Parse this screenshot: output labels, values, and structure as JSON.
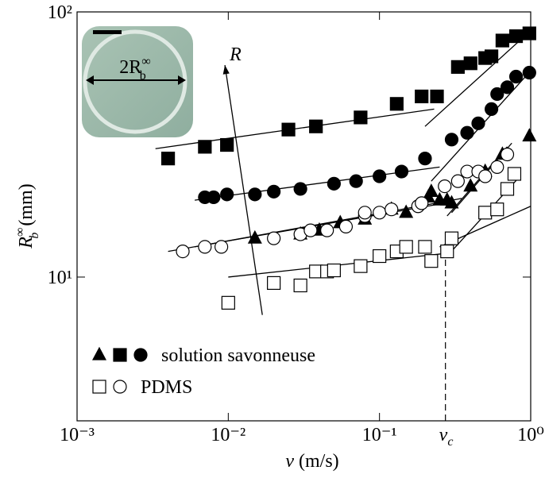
{
  "chart_data": {
    "type": "scatter",
    "log_x": true,
    "log_y": true,
    "xlim": [
      0.001,
      1
    ],
    "ylim": [
      2.87,
      100
    ],
    "xticks": [
      {
        "value": 0.001,
        "label": "10⁻³"
      },
      {
        "value": 0.01,
        "label": "10⁻²"
      },
      {
        "value": 0.1,
        "label": "10⁻¹"
      },
      {
        "value": 1,
        "label": "10⁰"
      }
    ],
    "yticks": [
      {
        "value": 10,
        "label": "10¹"
      },
      {
        "value": 100,
        "label": "10²"
      }
    ],
    "x_label": {
      "text": "v",
      "unit": "(m/s)"
    },
    "y_label": {
      "text": "R",
      "sub": "b",
      "sup": "∞",
      "unit": "(mm)"
    },
    "inset_label": {
      "text": "2R",
      "sub": "b",
      "sup": "∞"
    },
    "series": [
      {
        "name": "solution savonneuse",
        "marker": "triangle",
        "filled": true,
        "color": "#000000",
        "x": [
          0.015,
          0.03,
          0.04,
          0.055,
          0.08,
          0.12,
          0.15,
          0.21,
          0.22,
          0.25,
          0.28,
          0.3,
          0.4,
          0.5,
          0.65,
          0.98
        ],
        "y": [
          14,
          14.5,
          15,
          16,
          16.5,
          18,
          17.5,
          20,
          21,
          19.5,
          19.5,
          19,
          22,
          25,
          29,
          34
        ]
      },
      {
        "name": "solution savonneuse",
        "marker": "square",
        "filled": true,
        "color": "#000000",
        "x": [
          0.004,
          0.007,
          0.0098,
          0.025,
          0.038,
          0.075,
          0.13,
          0.19,
          0.24,
          0.33,
          0.4,
          0.5,
          0.55,
          0.65,
          0.8,
          0.98
        ],
        "y": [
          28,
          31,
          31.5,
          36,
          37,
          40,
          45,
          48,
          48,
          62,
          64,
          67,
          68,
          78,
          81,
          83
        ]
      },
      {
        "name": "solution savonneuse",
        "marker": "circle",
        "filled": true,
        "color": "#000000",
        "x": [
          0.007,
          0.008,
          0.0098,
          0.015,
          0.02,
          0.03,
          0.05,
          0.07,
          0.1,
          0.14,
          0.2,
          0.3,
          0.38,
          0.45,
          0.55,
          0.6,
          0.7,
          0.8,
          0.98
        ],
        "y": [
          20,
          20,
          20.5,
          20.5,
          21,
          21.5,
          22.5,
          23,
          24,
          25,
          28,
          33,
          35,
          38,
          43,
          49,
          52,
          57,
          59
        ]
      },
      {
        "name": "PDMS",
        "marker": "square",
        "filled": false,
        "color": "#000000",
        "x": [
          0.01,
          0.02,
          0.03,
          0.038,
          0.045,
          0.05,
          0.075,
          0.1,
          0.13,
          0.15,
          0.2,
          0.22,
          0.28,
          0.3,
          0.5,
          0.6,
          0.7,
          0.78
        ],
        "y": [
          8,
          9.5,
          9.3,
          10.5,
          10.5,
          10.6,
          11,
          12,
          12.5,
          13,
          13,
          11.5,
          12.5,
          14,
          17.5,
          18,
          21.5,
          24.5
        ]
      },
      {
        "name": "PDMS",
        "marker": "circle",
        "filled": false,
        "color": "#000000",
        "x": [
          0.005,
          0.007,
          0.009,
          0.02,
          0.03,
          0.035,
          0.045,
          0.06,
          0.08,
          0.08,
          0.1,
          0.12,
          0.18,
          0.19,
          0.27,
          0.33,
          0.38,
          0.45,
          0.5,
          0.6,
          0.7
        ],
        "y": [
          12.5,
          13,
          13,
          14,
          14.5,
          15,
          15,
          15.5,
          17,
          17.5,
          17.5,
          18,
          18.5,
          19,
          22,
          23,
          25,
          25,
          24,
          26,
          29
        ]
      }
    ],
    "fit_lines": [
      {
        "x": [
          0.0033,
          0.23
        ],
        "y": [
          30.5,
          43
        ]
      },
      {
        "x": [
          0.2,
          1
        ],
        "y": [
          37,
          85
        ]
      },
      {
        "x": [
          0.006,
          0.25
        ],
        "y": [
          19.5,
          26
        ]
      },
      {
        "x": [
          0.22,
          1
        ],
        "y": [
          23,
          60
        ]
      },
      {
        "x": [
          0.004,
          0.3
        ],
        "y": [
          12.5,
          19.2
        ]
      },
      {
        "x": [
          0.006,
          0.35
        ],
        "y": [
          13,
          19.8
        ]
      },
      {
        "x": [
          0.28,
          0.7
        ],
        "y": [
          17,
          31
        ]
      },
      {
        "x": [
          0.3,
          0.75
        ],
        "y": [
          17.5,
          32
        ]
      },
      {
        "x": [
          0.01,
          0.28
        ],
        "y": [
          10,
          12.3
        ]
      },
      {
        "x": [
          0.25,
          1
        ],
        "y": [
          13,
          18.5
        ]
      },
      {
        "x": [
          0.28,
          0.85
        ],
        "y": [
          12,
          24
        ]
      }
    ],
    "arrow": {
      "text": "R",
      "x": [
        0.0168,
        0.0095
      ],
      "y": [
        7.2,
        63
      ]
    },
    "critical": {
      "text": "v",
      "sub": "c",
      "x": 0.273,
      "y": 12.5
    }
  }
}
